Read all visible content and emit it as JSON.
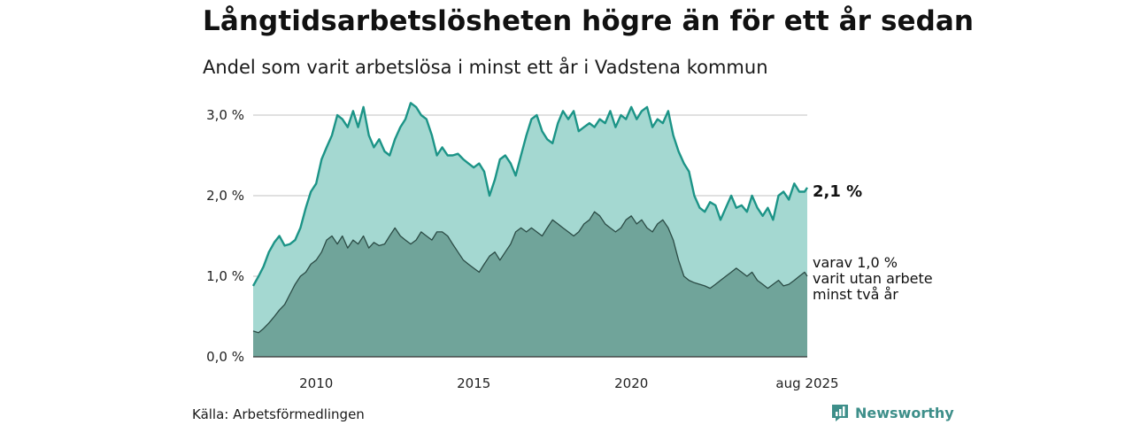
{
  "header": {
    "title": "Långtidsarbetslösheten högre än för ett år sedan",
    "subtitle": "Andel som varit arbetslösa i minst ett år i Vadstena kommun"
  },
  "footer": {
    "source": "Källa: Arbetsförmedlingen",
    "brand": "Newsworthy"
  },
  "colors": {
    "series1_line": "#1c9487",
    "series1_fill": "#a4d8d1",
    "series2_line": "#2b4b45",
    "series2_fill": "#70a49a",
    "grid": "#d6d6d6",
    "brand": "#3e8f8a"
  },
  "annotations": {
    "last_value_series1": "2,1 %",
    "series2_label_line1": "varav 1,0 %",
    "series2_label_line2": "varit utan arbete",
    "series2_label_line3": "minst två år"
  },
  "chart_data": {
    "type": "area",
    "xlim": [
      2008.0,
      2025.583
    ],
    "ylim": [
      0,
      3.0
    ],
    "y_ticks": [
      0,
      1.0,
      2.0,
      3.0
    ],
    "y_tick_labels": [
      "0,0 %",
      "1,0 %",
      "2,0 %",
      "3,0 %"
    ],
    "x_ticks": [
      2010,
      2015,
      2020,
      2025.583
    ],
    "x_tick_labels": [
      "2010",
      "2015",
      "2020",
      "aug 2025"
    ],
    "grid": true,
    "series": [
      {
        "x": [
          2008.0,
          2008.17,
          2008.33,
          2008.5,
          2008.67,
          2008.83,
          2009.0,
          2009.17,
          2009.33,
          2009.5,
          2009.67,
          2009.83,
          2010.0,
          2010.17,
          2010.33,
          2010.5,
          2010.67,
          2010.83,
          2011.0,
          2011.17,
          2011.33,
          2011.5,
          2011.67,
          2011.83,
          2012.0,
          2012.17,
          2012.33,
          2012.5,
          2012.67,
          2012.83,
          2013.0,
          2013.17,
          2013.33,
          2013.5,
          2013.67,
          2013.83,
          2014.0,
          2014.17,
          2014.33,
          2014.5,
          2014.67,
          2014.83,
          2015.0,
          2015.17,
          2015.33,
          2015.5,
          2015.67,
          2015.83,
          2016.0,
          2016.17,
          2016.33,
          2016.5,
          2016.67,
          2016.83,
          2017.0,
          2017.17,
          2017.33,
          2017.5,
          2017.67,
          2017.83,
          2018.0,
          2018.17,
          2018.33,
          2018.5,
          2018.67,
          2018.83,
          2019.0,
          2019.17,
          2019.33,
          2019.5,
          2019.67,
          2019.83,
          2020.0,
          2020.17,
          2020.33,
          2020.5,
          2020.67,
          2020.83,
          2021.0,
          2021.17,
          2021.33,
          2021.5,
          2021.67,
          2021.83,
          2022.0,
          2022.17,
          2022.33,
          2022.5,
          2022.67,
          2022.83,
          2023.0,
          2023.17,
          2023.33,
          2023.5,
          2023.67,
          2023.83,
          2024.0,
          2024.17,
          2024.33,
          2024.5,
          2024.67,
          2024.83,
          2025.0,
          2025.17,
          2025.33,
          2025.5,
          2025.583
        ],
        "values": [
          0.88,
          1.0,
          1.12,
          1.3,
          1.42,
          1.5,
          1.38,
          1.4,
          1.45,
          1.6,
          1.85,
          2.05,
          2.15,
          2.45,
          2.6,
          2.75,
          3.0,
          2.95,
          2.85,
          3.05,
          2.85,
          3.1,
          2.75,
          2.6,
          2.7,
          2.55,
          2.5,
          2.7,
          2.85,
          2.95,
          3.15,
          3.1,
          3.0,
          2.95,
          2.75,
          2.5,
          2.6,
          2.5,
          2.5,
          2.52,
          2.45,
          2.4,
          2.35,
          2.4,
          2.3,
          2.0,
          2.2,
          2.45,
          2.5,
          2.4,
          2.25,
          2.5,
          2.75,
          2.95,
          3.0,
          2.8,
          2.7,
          2.65,
          2.9,
          3.05,
          2.95,
          3.05,
          2.8,
          2.85,
          2.9,
          2.85,
          2.95,
          2.9,
          3.05,
          2.85,
          3.0,
          2.95,
          3.1,
          2.95,
          3.05,
          3.1,
          2.85,
          2.95,
          2.9,
          3.05,
          2.75,
          2.55,
          2.4,
          2.3,
          2.0,
          1.85,
          1.8,
          1.92,
          1.88,
          1.7,
          1.85,
          2.0,
          1.85,
          1.88,
          1.8,
          2.0,
          1.85,
          1.75,
          1.85,
          1.7,
          2.0,
          2.05,
          1.95,
          2.15,
          2.05,
          2.05,
          2.1
        ]
      },
      {
        "x": [
          2008.0,
          2008.17,
          2008.33,
          2008.5,
          2008.67,
          2008.83,
          2009.0,
          2009.17,
          2009.33,
          2009.5,
          2009.67,
          2009.83,
          2010.0,
          2010.17,
          2010.33,
          2010.5,
          2010.67,
          2010.83,
          2011.0,
          2011.17,
          2011.33,
          2011.5,
          2011.67,
          2011.83,
          2012.0,
          2012.17,
          2012.33,
          2012.5,
          2012.67,
          2012.83,
          2013.0,
          2013.17,
          2013.33,
          2013.5,
          2013.67,
          2013.83,
          2014.0,
          2014.17,
          2014.33,
          2014.5,
          2014.67,
          2014.83,
          2015.0,
          2015.17,
          2015.33,
          2015.5,
          2015.67,
          2015.83,
          2016.0,
          2016.17,
          2016.33,
          2016.5,
          2016.67,
          2016.83,
          2017.0,
          2017.17,
          2017.33,
          2017.5,
          2017.67,
          2017.83,
          2018.0,
          2018.17,
          2018.33,
          2018.5,
          2018.67,
          2018.83,
          2019.0,
          2019.17,
          2019.33,
          2019.5,
          2019.67,
          2019.83,
          2020.0,
          2020.17,
          2020.33,
          2020.5,
          2020.67,
          2020.83,
          2021.0,
          2021.17,
          2021.33,
          2021.5,
          2021.67,
          2021.83,
          2022.0,
          2022.17,
          2022.33,
          2022.5,
          2022.67,
          2022.83,
          2023.0,
          2023.17,
          2023.33,
          2023.5,
          2023.67,
          2023.83,
          2024.0,
          2024.17,
          2024.33,
          2024.5,
          2024.67,
          2024.83,
          2025.0,
          2025.17,
          2025.33,
          2025.5,
          2025.583
        ],
        "values": [
          0.32,
          0.3,
          0.35,
          0.42,
          0.5,
          0.58,
          0.65,
          0.78,
          0.9,
          1.0,
          1.05,
          1.15,
          1.2,
          1.3,
          1.45,
          1.5,
          1.4,
          1.5,
          1.35,
          1.45,
          1.4,
          1.5,
          1.35,
          1.42,
          1.38,
          1.4,
          1.5,
          1.6,
          1.5,
          1.45,
          1.4,
          1.45,
          1.55,
          1.5,
          1.45,
          1.55,
          1.55,
          1.5,
          1.4,
          1.3,
          1.2,
          1.15,
          1.1,
          1.05,
          1.15,
          1.25,
          1.3,
          1.2,
          1.3,
          1.4,
          1.55,
          1.6,
          1.55,
          1.6,
          1.55,
          1.5,
          1.6,
          1.7,
          1.65,
          1.6,
          1.55,
          1.5,
          1.55,
          1.65,
          1.7,
          1.8,
          1.75,
          1.65,
          1.6,
          1.55,
          1.6,
          1.7,
          1.75,
          1.65,
          1.7,
          1.6,
          1.55,
          1.65,
          1.7,
          1.6,
          1.45,
          1.2,
          1.0,
          0.95,
          0.92,
          0.9,
          0.88,
          0.85,
          0.9,
          0.95,
          1.0,
          1.05,
          1.1,
          1.05,
          1.0,
          1.05,
          0.95,
          0.9,
          0.85,
          0.9,
          0.95,
          0.88,
          0.9,
          0.95,
          1.0,
          1.05,
          1.0
        ]
      }
    ]
  }
}
